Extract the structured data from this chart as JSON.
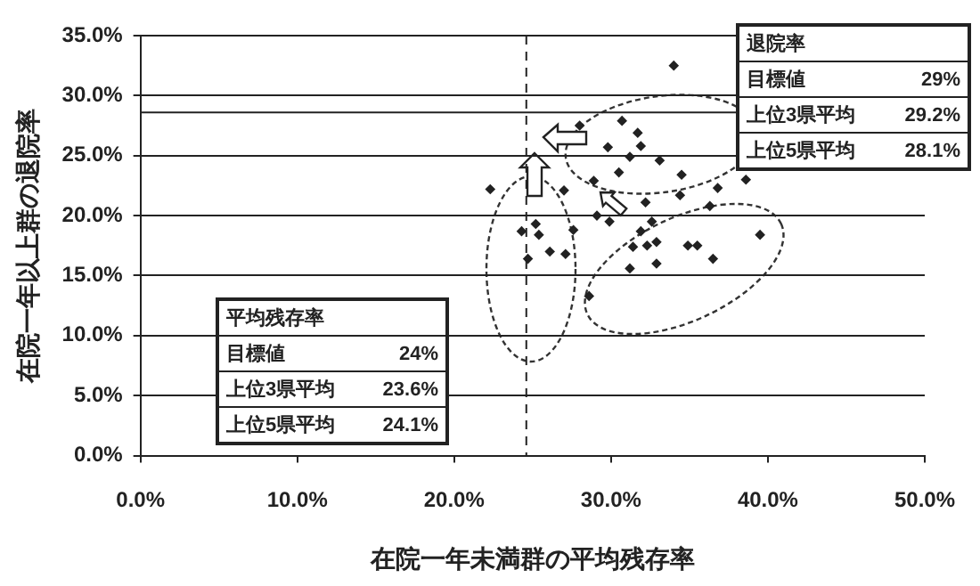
{
  "chart_data": {
    "type": "scatter",
    "xlabel": "在院一年未満群の平均残存率",
    "ylabel": "在院一年以上群の退院率",
    "x": [
      34.0,
      28.0,
      30.7,
      31.7,
      29.8,
      31.9,
      31.2,
      33.1,
      30.5,
      34.5,
      28.9,
      36.8,
      38.6,
      34.4,
      32.2,
      22.3,
      27.0,
      36.3,
      29.1,
      29.9,
      32.6,
      25.2,
      24.3,
      25.4,
      27.6,
      31.9,
      39.5,
      31.4,
      32.9,
      32.3,
      34.9,
      35.5,
      26.1,
      27.1,
      24.7,
      36.5,
      32.9,
      31.2,
      28.6
    ],
    "values": [
      32.5,
      27.5,
      27.9,
      26.9,
      25.7,
      25.8,
      24.9,
      24.6,
      23.6,
      23.4,
      22.9,
      22.3,
      23.0,
      21.7,
      21.1,
      22.2,
      22.1,
      20.8,
      20.0,
      19.5,
      19.5,
      19.3,
      18.7,
      18.4,
      18.8,
      18.7,
      18.4,
      17.4,
      17.8,
      17.5,
      17.5,
      17.5,
      17.0,
      16.8,
      16.4,
      16.4,
      16.0,
      15.6,
      13.3
    ],
    "color": "#222222",
    "marker": "diamond",
    "xlim": [
      0,
      50
    ],
    "xticks": [
      {
        "value": 0,
        "label": "0.0%"
      },
      {
        "value": 10,
        "label": "10.0%"
      },
      {
        "value": 20,
        "label": "20.0%"
      },
      {
        "value": 30,
        "label": "30.0%"
      },
      {
        "value": 40,
        "label": "40.0%"
      },
      {
        "value": 50,
        "label": "50.0%"
      }
    ],
    "ylim": [
      0,
      35
    ],
    "yticks": [
      {
        "value": 0,
        "label": "0.0%"
      },
      {
        "value": 5,
        "label": "5.0%"
      },
      {
        "value": 10,
        "label": "10.0%"
      },
      {
        "value": 15,
        "label": "15.0%"
      },
      {
        "value": 20,
        "label": "20.0%"
      },
      {
        "value": 25,
        "label": "25.0%"
      },
      {
        "value": 30,
        "label": "30.0%"
      },
      {
        "value": 35,
        "label": "35.0%"
      }
    ],
    "grid": "y",
    "legend": false,
    "ref_lines": [
      {
        "axis": "y",
        "value": 28.6,
        "color": "#222222",
        "line_style": "solid"
      },
      {
        "axis": "x",
        "value": 24.6,
        "color": "#222222",
        "line_style": "dashed"
      }
    ],
    "annotations": [
      "退院率",
      "目標値",
      "29%",
      "上位3県平均",
      "29.2%",
      "上位5県平均",
      "28.1%",
      "平均残存率",
      "目標値",
      "24%",
      "上位3県平均",
      "23.6%",
      "上位5県平均",
      "24.1%"
    ]
  }
}
